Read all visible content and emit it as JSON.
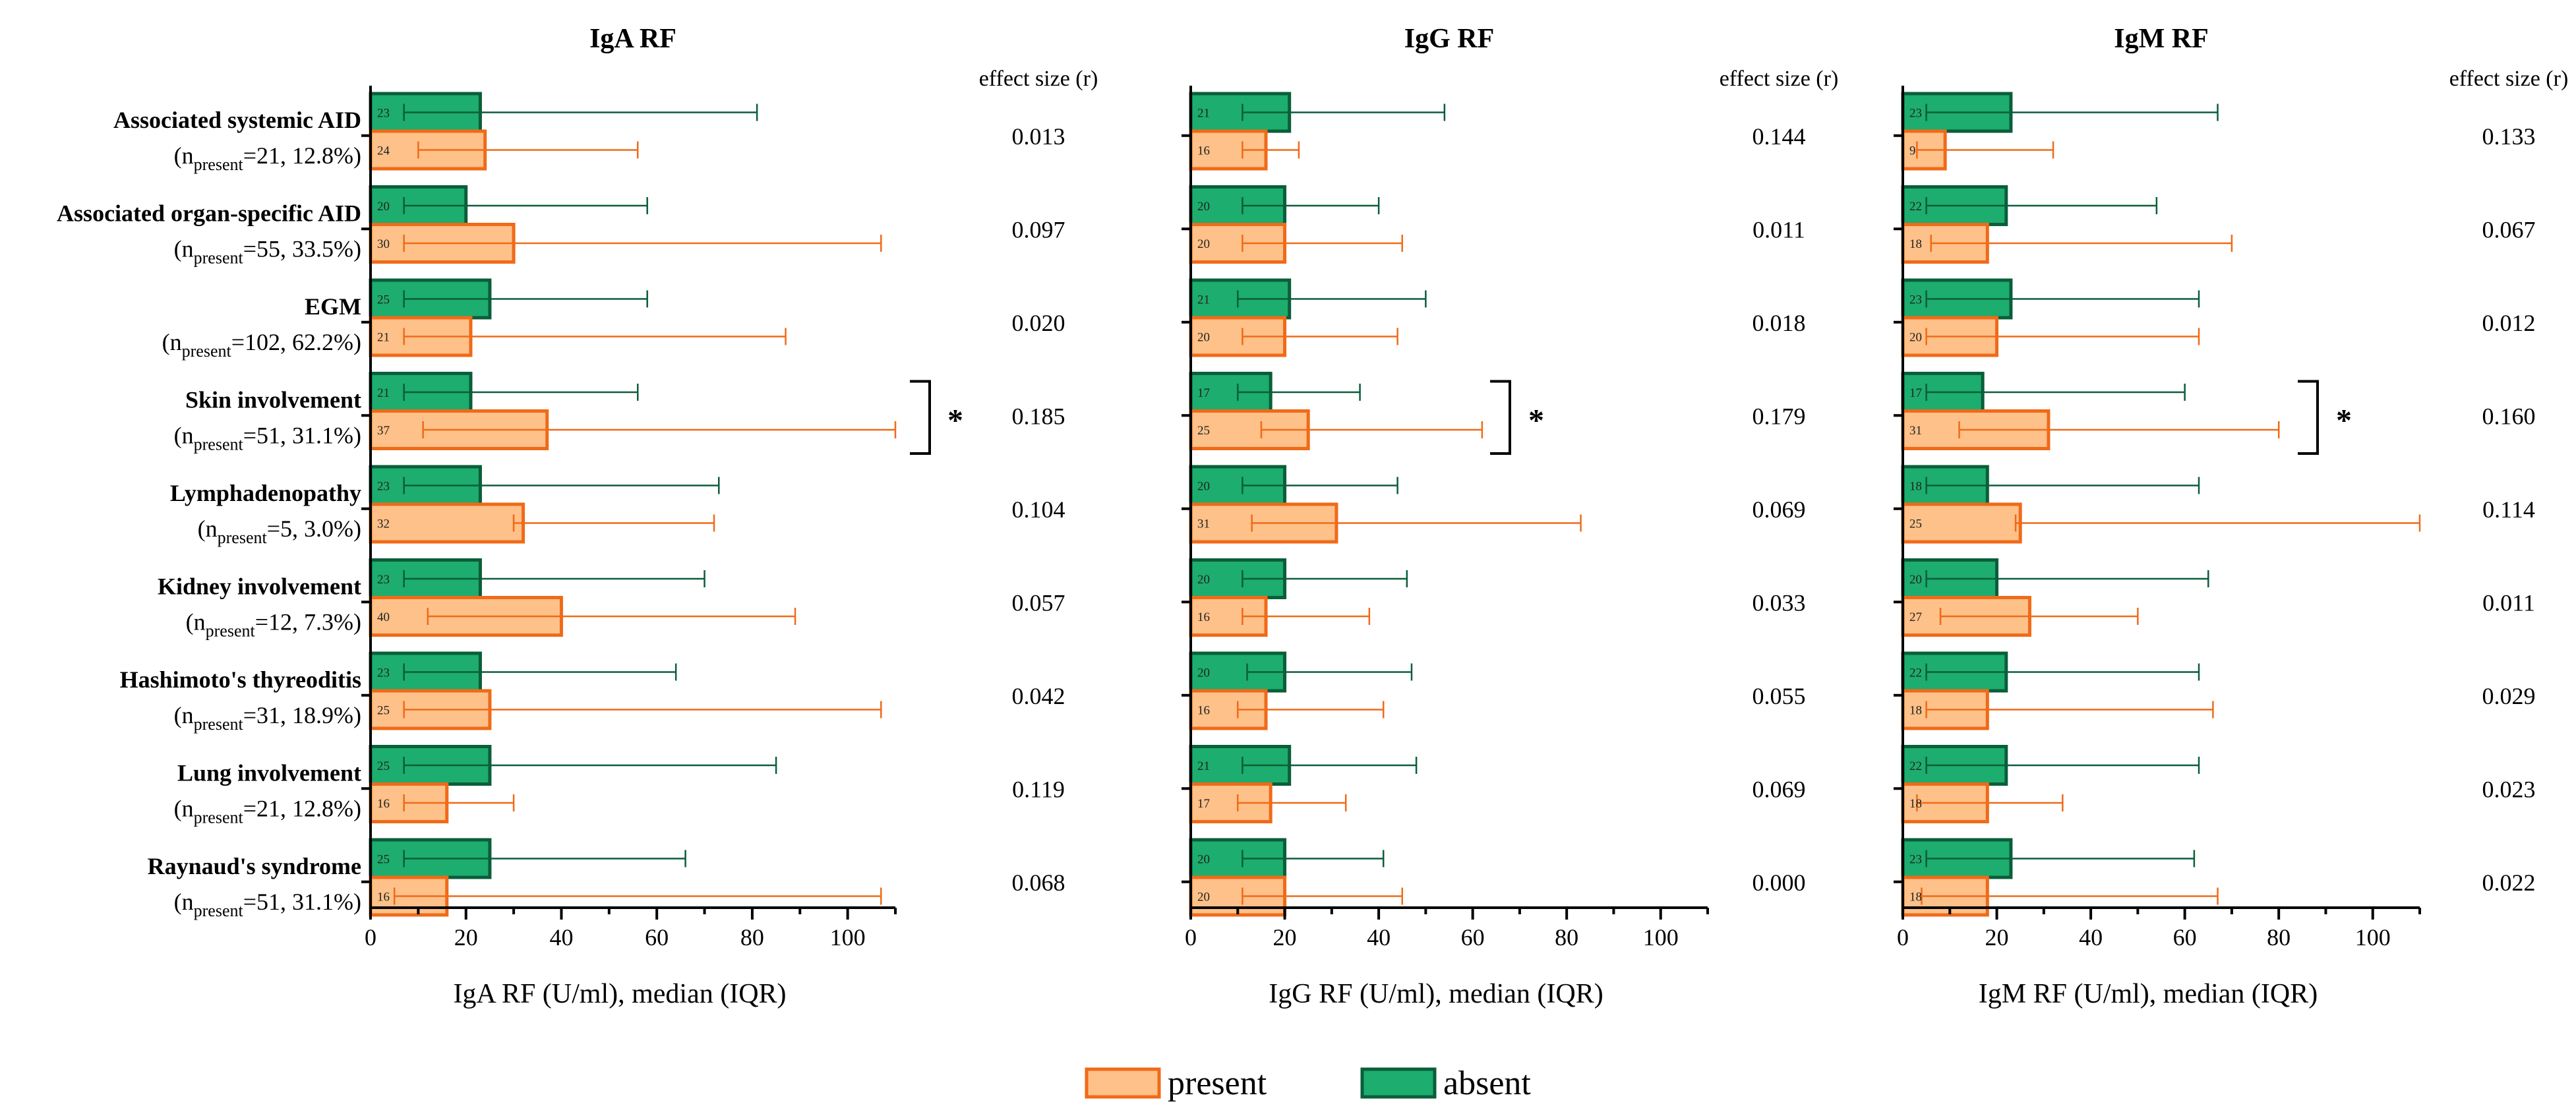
{
  "chart_data": {
    "type": "bar",
    "orientation": "horizontal",
    "categories": [
      {
        "name": "Associated systemic AID",
        "n_label": "21, 12.8%"
      },
      {
        "name": "Associated organ-specific AID",
        "n_label": "55, 33.5%"
      },
      {
        "name": "EGM",
        "n_label": "102, 62.2%"
      },
      {
        "name": "Skin involvement",
        "n_label": "51, 31.1%"
      },
      {
        "name": "Lymphadenopathy",
        "n_label": "5, 3.0%"
      },
      {
        "name": "Kidney involvement",
        "n_label": "12, 7.3%"
      },
      {
        "name": "Hashimoto's thyreoditis",
        "n_label": "31, 18.9%"
      },
      {
        "name": "Lung involvement",
        "n_label": "21, 12.8%"
      },
      {
        "name": "Raynaud's syndrome",
        "n_label": "51, 31.1%"
      }
    ],
    "n_prefix": "(n",
    "n_subscript": "present",
    "effect_header": "effect size (r)",
    "significance_mark": "*",
    "legend": [
      {
        "key": "present",
        "label": "present",
        "fill": "#FDC189",
        "stroke": "#F06A18"
      },
      {
        "key": "absent",
        "label": "absent",
        "fill": "#1DAD6E",
        "stroke": "#0A5E3A"
      }
    ],
    "panels": [
      {
        "title": "IgA RF",
        "xlabel": "IgA RF (U/ml), median (IQR)",
        "xlim": [
          0,
          110
        ],
        "xticks": [
          0,
          20,
          40,
          60,
          80,
          100
        ],
        "absent": {
          "median": [
            23,
            20,
            25,
            21,
            23,
            23,
            23,
            25,
            25
          ],
          "q1": [
            7,
            7,
            7,
            7,
            7,
            7,
            7,
            7,
            7
          ],
          "q3": [
            81,
            58,
            58,
            56,
            73,
            70,
            64,
            85,
            66
          ]
        },
        "present": {
          "median": [
            24,
            30,
            21,
            37,
            32,
            40,
            25,
            16,
            16
          ],
          "q1": [
            10,
            7,
            7,
            11,
            30,
            12,
            7,
            7,
            5
          ],
          "q3": [
            56,
            107,
            87,
            110,
            72,
            89,
            107,
            30,
            107
          ]
        },
        "effect": [
          "0.013",
          "0.097",
          "0.020",
          "0.185",
          "0.104",
          "0.057",
          "0.042",
          "0.119",
          "0.068"
        ],
        "significant": [
          false,
          false,
          false,
          true,
          false,
          false,
          false,
          false,
          false
        ]
      },
      {
        "title": "IgG RF",
        "xlabel": "IgG RF (U/ml), median (IQR)",
        "xlim": [
          0,
          110
        ],
        "xticks": [
          0,
          20,
          40,
          60,
          80,
          100
        ],
        "absent": {
          "median": [
            21,
            20,
            21,
            17,
            20,
            20,
            20,
            21,
            20
          ],
          "q1": [
            11,
            11,
            10,
            10,
            11,
            11,
            12,
            11,
            11
          ],
          "q3": [
            54,
            40,
            50,
            36,
            44,
            46,
            47,
            48,
            41
          ]
        },
        "present": {
          "median": [
            16,
            20,
            20,
            25,
            31,
            16,
            16,
            17,
            20
          ],
          "q1": [
            11,
            11,
            11,
            15,
            13,
            11,
            10,
            10,
            11
          ],
          "q3": [
            23,
            45,
            44,
            62,
            83,
            38,
            41,
            33,
            45
          ]
        },
        "effect": [
          "0.144",
          "0.011",
          "0.018",
          "0.179",
          "0.069",
          "0.033",
          "0.055",
          "0.069",
          "0.000"
        ],
        "significant": [
          false,
          false,
          false,
          true,
          false,
          false,
          false,
          false,
          false
        ]
      },
      {
        "title": "IgM RF",
        "xlabel": "IgM RF (U/ml), median (IQR)",
        "xlim": [
          0,
          110
        ],
        "xticks": [
          0,
          20,
          40,
          60,
          80,
          100
        ],
        "absent": {
          "median": [
            23,
            22,
            23,
            17,
            18,
            20,
            22,
            22,
            23
          ],
          "q1": [
            5,
            5,
            5,
            5,
            5,
            5,
            5,
            5,
            5
          ],
          "q3": [
            67,
            54,
            63,
            60,
            63,
            65,
            63,
            63,
            62
          ]
        },
        "present": {
          "median": [
            9,
            18,
            20,
            31,
            25,
            27,
            18,
            18,
            18
          ],
          "q1": [
            3,
            6,
            5,
            12,
            24,
            8,
            5,
            3,
            4
          ],
          "q3": [
            32,
            70,
            63,
            80,
            110,
            50,
            66,
            34,
            67
          ]
        },
        "effect": [
          "0.133",
          "0.067",
          "0.012",
          "0.160",
          "0.114",
          "0.011",
          "0.029",
          "0.023",
          "0.022"
        ],
        "significant": [
          false,
          false,
          false,
          true,
          false,
          false,
          false,
          false,
          false
        ]
      }
    ]
  }
}
